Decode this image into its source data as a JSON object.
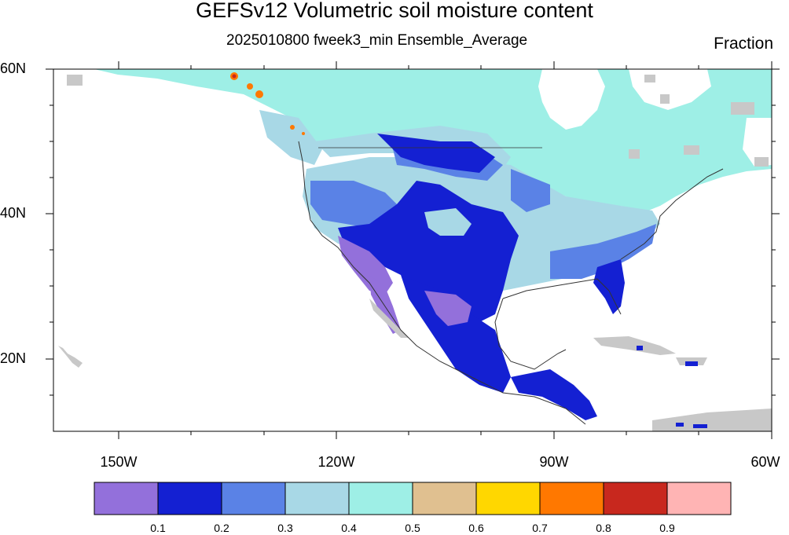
{
  "header": {
    "title": "GEFSv12 Volumetric soil moisture content",
    "subtitle": "2025010800 fweek3_min Ensemble_Average",
    "units": "Fraction"
  },
  "axes": {
    "lat_ticks": [
      "60N",
      "40N",
      "20N"
    ],
    "lon_ticks": [
      "150W",
      "120W",
      "90W",
      "60W"
    ]
  },
  "colorbar": {
    "colors": [
      "#9370DB",
      "#1420D2",
      "#5A82E6",
      "#A8D8E6",
      "#9EEFE6",
      "#E0C090",
      "#FFD700",
      "#FF7800",
      "#C8281E",
      "#FFB4B4"
    ],
    "labels": [
      "0.1",
      "0.2",
      "0.3",
      "0.4",
      "0.5",
      "0.6",
      "0.7",
      "0.8",
      "0.9"
    ]
  },
  "map_colors": {
    "ocean": "#ffffff",
    "missing": "#c8c8c8",
    "lt_0_1": "#9370DB",
    "v0_1_0_2": "#1420D2",
    "v0_2_0_3": "#5A82E6",
    "v0_3_0_4": "#A8D8E6",
    "v0_4_0_5": "#9EEFE6",
    "v0_7_0_8": "#FF7800",
    "v0_8_0_9": "#C8281E"
  }
}
